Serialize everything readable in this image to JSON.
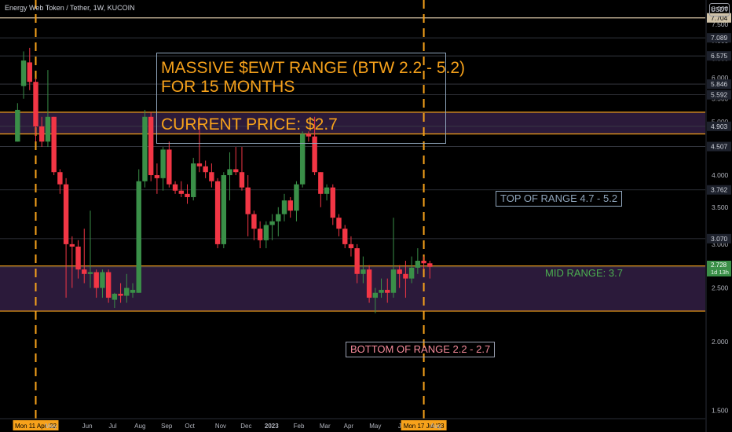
{
  "header": {
    "symbol_title": "Energy Web Token / Tether, 1W, KUCOIN",
    "currency_button": "USDT"
  },
  "annotations": {
    "main_note": [
      "MASSIVE $EWT RANGE (BTW 2.2 - 5.2)",
      "FOR 15 MONTHS",
      "",
      "CURRENT PRICE: $2.7"
    ],
    "top_range": "TOP OF RANGE 4.7 - 5.2",
    "mid_range": "MID RANGE: 3.7",
    "bottom_range": "BOTTOM OF RANGE 2.2 - 2.7"
  },
  "colors": {
    "up": "#3a8f48",
    "down": "#f23645",
    "range_band": "#2b1a3a",
    "range_line": "#f7a21b",
    "vline": "#f7a21b",
    "top_note": "#8fa5bb",
    "bottom_note": "#f58a9a"
  },
  "chart_data": {
    "type": "candlestick",
    "title": "Energy Web Token / Tether, 1W, KUCOIN",
    "scale": "log",
    "ylim": [
      1.45,
      8.3
    ],
    "yticks": [
      1.5,
      2.0,
      2.5,
      3.0,
      3.5,
      4.0,
      4.5,
      5.0,
      5.5,
      6.0,
      6.5,
      7.0,
      7.5,
      8.0
    ],
    "ytick_labels": [
      "1.500",
      "2.000",
      "2.500",
      "3.000",
      "3.500",
      "4.000",
      "4.500",
      "5.000",
      "5.500",
      "6.000",
      "6.500",
      "7.000",
      "7.500",
      "8.000"
    ],
    "price_levels": [
      {
        "value": 7.704,
        "label": "7.704",
        "style": "label-line"
      },
      {
        "value": 7.089,
        "label": "7.089"
      },
      {
        "value": 6.575,
        "label": "6.575"
      },
      {
        "value": 5.846,
        "label": "5.846"
      },
      {
        "value": 5.592,
        "label": "5.592"
      },
      {
        "value": 4.903,
        "label": "4.903",
        "style": "band-edge"
      },
      {
        "value": 4.507,
        "label": "4.507"
      },
      {
        "value": 3.762,
        "label": "3.762"
      },
      {
        "value": 3.07,
        "label": "3.070"
      },
      {
        "value": 2.728,
        "label": "2.728",
        "sub": "1d 13h",
        "style": "current"
      }
    ],
    "bands": [
      {
        "name": "TOP OF RANGE 4.7 - 5.2",
        "low": 4.75,
        "high": 5.2
      },
      {
        "name": "BOTTOM OF RANGE 2.2 - 2.7",
        "low": 2.27,
        "high": 2.74
      }
    ],
    "x_labels": [
      "Mon 11 Apr '22",
      "May",
      "Jun",
      "Jul",
      "Aug",
      "Sep",
      "Oct",
      "Nov",
      "Dec",
      "2023",
      "Feb",
      "Mar",
      "Apr",
      "May",
      "Jun",
      "Mon 17 Jul '23",
      "Aug"
    ],
    "x_label_weeks": [
      0,
      2.5,
      8.5,
      12.7,
      17.2,
      21.6,
      25.4,
      30.5,
      34.7,
      38.9,
      43.4,
      47.7,
      51.6,
      56.0,
      60.6,
      64.0,
      66.0
    ],
    "x_label_highlight": [
      0,
      15
    ],
    "x_label_bold": [
      9
    ],
    "vlines_week": [
      0,
      64
    ],
    "candles": [
      {
        "w": -3,
        "o": 4.6,
        "h": 5.4,
        "l": 4.6,
        "c": 5.25
      },
      {
        "w": -2,
        "o": 5.8,
        "h": 6.7,
        "l": 5.5,
        "c": 6.45
      },
      {
        "w": -1,
        "o": 6.4,
        "h": 6.8,
        "l": 5.7,
        "c": 5.9
      },
      {
        "w": 0,
        "o": 5.9,
        "h": 6.0,
        "l": 4.6,
        "c": 4.9
      },
      {
        "w": 1,
        "o": 4.9,
        "h": 5.1,
        "l": 4.5,
        "c": 4.6
      },
      {
        "w": 2,
        "o": 4.6,
        "h": 6.2,
        "l": 4.5,
        "c": 5.1
      },
      {
        "w": 3,
        "o": 5.1,
        "h": 5.1,
        "l": 4.0,
        "c": 4.05
      },
      {
        "w": 4,
        "o": 4.05,
        "h": 4.1,
        "l": 3.7,
        "c": 3.85
      },
      {
        "w": 5,
        "o": 3.85,
        "h": 3.95,
        "l": 2.4,
        "c": 3.0
      },
      {
        "w": 6,
        "o": 3.0,
        "h": 3.1,
        "l": 2.5,
        "c": 2.97
      },
      {
        "w": 7,
        "o": 2.97,
        "h": 3.05,
        "l": 2.6,
        "c": 2.7
      },
      {
        "w": 8,
        "o": 2.7,
        "h": 3.2,
        "l": 2.55,
        "c": 2.65
      },
      {
        "w": 9,
        "o": 2.65,
        "h": 3.45,
        "l": 2.5,
        "c": 2.67
      },
      {
        "w": 10,
        "o": 2.67,
        "h": 2.7,
        "l": 2.4,
        "c": 2.5
      },
      {
        "w": 11,
        "o": 2.5,
        "h": 2.7,
        "l": 2.4,
        "c": 2.67
      },
      {
        "w": 12,
        "o": 2.67,
        "h": 2.7,
        "l": 2.35,
        "c": 2.4
      },
      {
        "w": 13,
        "o": 2.38,
        "h": 2.45,
        "l": 2.3,
        "c": 2.44
      },
      {
        "w": 14,
        "o": 2.44,
        "h": 2.55,
        "l": 2.35,
        "c": 2.42
      },
      {
        "w": 15,
        "o": 2.42,
        "h": 2.65,
        "l": 2.35,
        "c": 2.5
      },
      {
        "w": 16,
        "o": 2.45,
        "h": 2.55,
        "l": 2.4,
        "c": 2.48
      },
      {
        "w": 17,
        "o": 2.45,
        "h": 4.1,
        "l": 2.45,
        "c": 3.9
      },
      {
        "w": 18,
        "o": 3.9,
        "h": 5.25,
        "l": 3.8,
        "c": 5.1
      },
      {
        "w": 19,
        "o": 5.1,
        "h": 5.2,
        "l": 3.9,
        "c": 4.0
      },
      {
        "w": 20,
        "o": 4.0,
        "h": 4.2,
        "l": 3.7,
        "c": 3.95
      },
      {
        "w": 21,
        "o": 3.95,
        "h": 4.5,
        "l": 3.75,
        "c": 4.45
      },
      {
        "w": 22,
        "o": 4.45,
        "h": 4.6,
        "l": 3.8,
        "c": 3.85
      },
      {
        "w": 23,
        "o": 3.85,
        "h": 3.9,
        "l": 3.7,
        "c": 3.75
      },
      {
        "w": 24,
        "o": 3.75,
        "h": 3.9,
        "l": 3.65,
        "c": 3.7
      },
      {
        "w": 25,
        "o": 3.7,
        "h": 3.85,
        "l": 3.55,
        "c": 3.65
      },
      {
        "w": 26,
        "o": 3.65,
        "h": 4.3,
        "l": 3.6,
        "c": 4.2
      },
      {
        "w": 27,
        "o": 4.2,
        "h": 5.1,
        "l": 4.05,
        "c": 4.15
      },
      {
        "w": 28,
        "o": 4.15,
        "h": 4.25,
        "l": 3.95,
        "c": 4.05
      },
      {
        "w": 29,
        "o": 4.05,
        "h": 4.2,
        "l": 3.8,
        "c": 3.9
      },
      {
        "w": 30,
        "o": 3.9,
        "h": 3.95,
        "l": 2.95,
        "c": 3.0
      },
      {
        "w": 31,
        "o": 3.0,
        "h": 4.05,
        "l": 2.95,
        "c": 4.0
      },
      {
        "w": 32,
        "o": 4.0,
        "h": 4.4,
        "l": 3.6,
        "c": 4.1
      },
      {
        "w": 33,
        "o": 4.1,
        "h": 4.5,
        "l": 4.0,
        "c": 4.05
      },
      {
        "w": 34,
        "o": 4.05,
        "h": 4.5,
        "l": 3.75,
        "c": 3.8
      },
      {
        "w": 35,
        "o": 3.8,
        "h": 4.0,
        "l": 3.1,
        "c": 3.4
      },
      {
        "w": 36,
        "o": 3.4,
        "h": 3.45,
        "l": 3.05,
        "c": 3.2
      },
      {
        "w": 37,
        "o": 3.2,
        "h": 3.3,
        "l": 2.95,
        "c": 3.05
      },
      {
        "w": 38,
        "o": 3.05,
        "h": 3.3,
        "l": 2.95,
        "c": 3.25
      },
      {
        "w": 39,
        "o": 3.25,
        "h": 3.4,
        "l": 3.05,
        "c": 3.3
      },
      {
        "w": 40,
        "o": 3.3,
        "h": 3.5,
        "l": 3.1,
        "c": 3.4
      },
      {
        "w": 41,
        "o": 3.4,
        "h": 3.7,
        "l": 3.3,
        "c": 3.6
      },
      {
        "w": 42,
        "o": 3.6,
        "h": 3.65,
        "l": 3.35,
        "c": 3.45
      },
      {
        "w": 43,
        "o": 3.45,
        "h": 3.9,
        "l": 3.3,
        "c": 3.85
      },
      {
        "w": 44,
        "o": 3.85,
        "h": 4.8,
        "l": 3.8,
        "c": 4.75
      },
      {
        "w": 45,
        "o": 4.75,
        "h": 4.8,
        "l": 4.6,
        "c": 4.7
      },
      {
        "w": 46,
        "o": 4.7,
        "h": 5.1,
        "l": 4.0,
        "c": 4.05
      },
      {
        "w": 47,
        "o": 4.05,
        "h": 4.05,
        "l": 3.5,
        "c": 3.7
      },
      {
        "w": 48,
        "o": 3.7,
        "h": 3.85,
        "l": 3.6,
        "c": 3.8
      },
      {
        "w": 49,
        "o": 3.8,
        "h": 3.85,
        "l": 3.25,
        "c": 3.35
      },
      {
        "w": 50,
        "o": 3.35,
        "h": 3.4,
        "l": 3.1,
        "c": 3.2
      },
      {
        "w": 51,
        "o": 3.2,
        "h": 3.25,
        "l": 2.95,
        "c": 3.0
      },
      {
        "w": 52,
        "o": 3.0,
        "h": 3.1,
        "l": 2.85,
        "c": 2.95
      },
      {
        "w": 53,
        "o": 2.95,
        "h": 3.0,
        "l": 2.55,
        "c": 2.65
      },
      {
        "w": 54,
        "o": 2.65,
        "h": 2.85,
        "l": 2.55,
        "c": 2.7
      },
      {
        "w": 55,
        "o": 2.7,
        "h": 2.75,
        "l": 2.35,
        "c": 2.4
      },
      {
        "w": 56,
        "o": 2.4,
        "h": 2.5,
        "l": 2.25,
        "c": 2.45
      },
      {
        "w": 57,
        "o": 2.45,
        "h": 2.6,
        "l": 2.4,
        "c": 2.48
      },
      {
        "w": 58,
        "o": 2.48,
        "h": 2.6,
        "l": 2.35,
        "c": 2.45
      },
      {
        "w": 59,
        "o": 2.45,
        "h": 3.35,
        "l": 2.4,
        "c": 2.7
      },
      {
        "w": 60,
        "o": 2.7,
        "h": 2.75,
        "l": 2.5,
        "c": 2.65
      },
      {
        "w": 61,
        "o": 2.65,
        "h": 2.8,
        "l": 2.4,
        "c": 2.6
      },
      {
        "w": 62,
        "o": 2.6,
        "h": 2.85,
        "l": 2.55,
        "c": 2.72
      },
      {
        "w": 63,
        "o": 2.72,
        "h": 2.95,
        "l": 2.65,
        "c": 2.8
      },
      {
        "w": 64,
        "o": 2.8,
        "h": 2.85,
        "l": 2.7,
        "c": 2.77
      },
      {
        "w": 65,
        "o": 2.77,
        "h": 2.8,
        "l": 2.6,
        "c": 2.73
      }
    ]
  }
}
